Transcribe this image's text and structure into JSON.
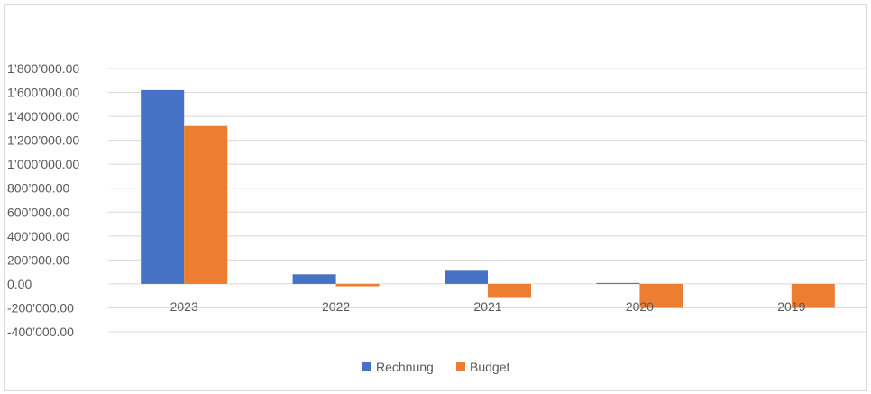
{
  "chart_data": {
    "type": "bar",
    "title": "",
    "xlabel": "",
    "ylabel": "",
    "categories": [
      "2023",
      "2022",
      "2021",
      "2020",
      "2019"
    ],
    "series": [
      {
        "name": "Rechnung",
        "color": "#4472c4",
        "values": [
          1620000,
          80000,
          110000,
          8000,
          0
        ]
      },
      {
        "name": "Budget",
        "color": "#ed7d31",
        "values": [
          1320000,
          -20000,
          -110000,
          -200000,
          -200000
        ]
      }
    ],
    "ylim": [
      -400000,
      1800000
    ],
    "y_ticks": [
      "1’800’000.00",
      "1’600’000.00",
      "1’400’000.00",
      "1’200’000.00",
      "1’000’000.00",
      "800’000.00",
      "600’000.00",
      "400’000.00",
      "200’000.00",
      "0.00",
      "-200’000.00",
      "-400’000.00"
    ],
    "y_tick_values": [
      1800000,
      1600000,
      1400000,
      1200000,
      1000000,
      800000,
      600000,
      400000,
      200000,
      0,
      -200000,
      -400000
    ],
    "grid": true,
    "legend_position": "bottom"
  }
}
